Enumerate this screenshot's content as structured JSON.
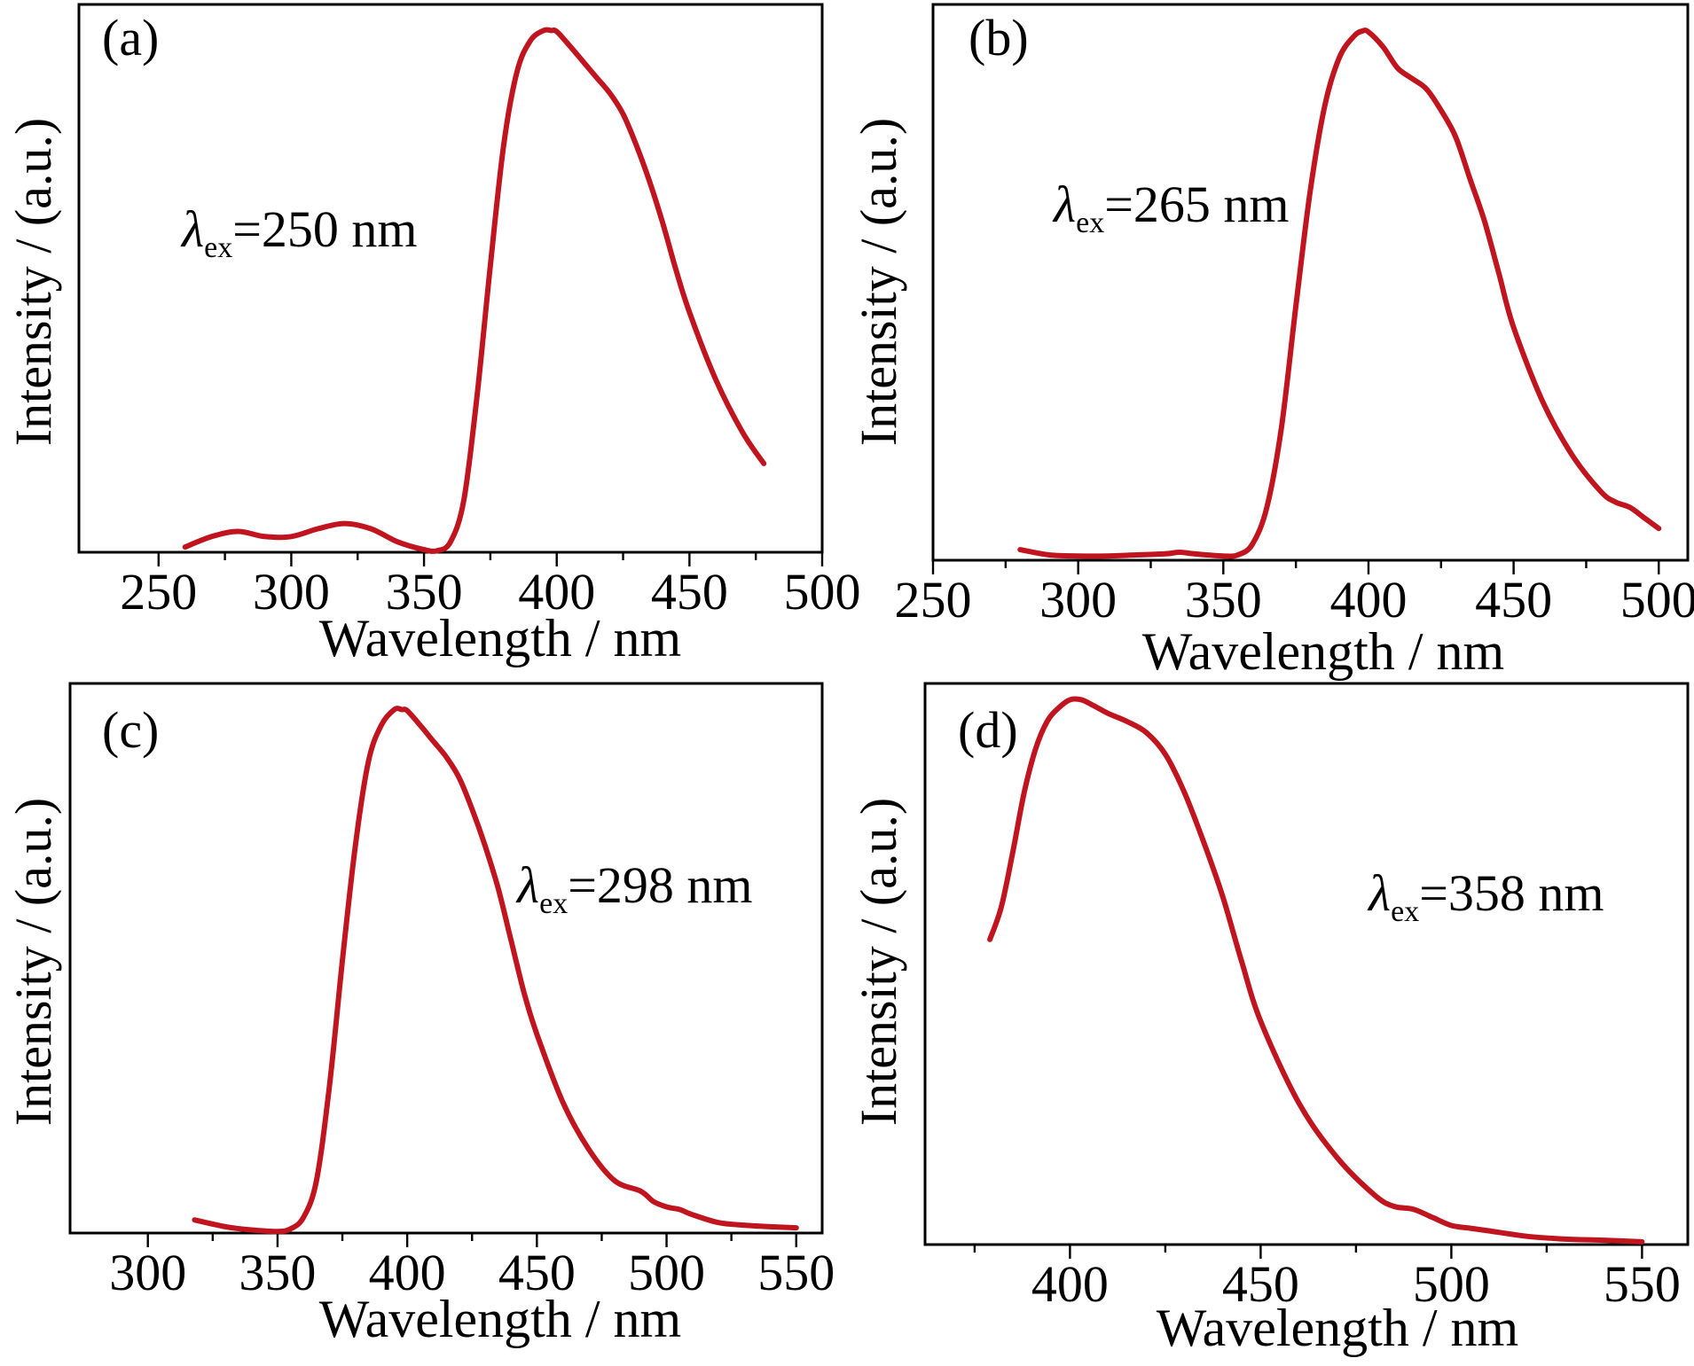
{
  "chart_data": [
    {
      "type": "line",
      "panel_label": "(a)",
      "annotation": {
        "symbol": "λ",
        "subscript": "ex",
        "text": "=250 nm"
      },
      "xlabel": "Wavelength / nm",
      "ylabel": "Intensity / (a.u.)",
      "xlim": [
        220,
        500
      ],
      "ylim": [
        0,
        1.05
      ],
      "x_major_ticks": [
        250,
        300,
        350,
        400,
        450,
        500
      ],
      "x_minor_ticks": [
        275,
        325,
        375,
        425,
        475
      ],
      "series": [
        {
          "color": "#c0151f",
          "x": [
            260,
            270,
            280,
            290,
            300,
            310,
            320,
            330,
            340,
            350,
            355,
            360,
            365,
            370,
            375,
            380,
            385,
            390,
            395,
            398,
            400,
            405,
            410,
            415,
            420,
            425,
            430,
            435,
            440,
            445,
            450,
            460,
            470,
            478
          ],
          "y": [
            0.01,
            0.03,
            0.04,
            0.03,
            0.03,
            0.045,
            0.055,
            0.045,
            0.02,
            0.005,
            0.003,
            0.02,
            0.1,
            0.3,
            0.55,
            0.78,
            0.92,
            0.98,
            1.0,
            1.0,
            0.998,
            0.97,
            0.94,
            0.91,
            0.88,
            0.84,
            0.78,
            0.71,
            0.63,
            0.54,
            0.46,
            0.33,
            0.23,
            0.17
          ]
        }
      ]
    },
    {
      "type": "line",
      "panel_label": "(b)",
      "annotation": {
        "symbol": "λ",
        "subscript": "ex",
        "text": "=265 nm"
      },
      "xlabel": "Wavelength / nm",
      "ylabel": "Intensity / (a.u.)",
      "xlim": [
        250,
        510
      ],
      "ylim": [
        0,
        1.05
      ],
      "x_major_ticks": [
        250,
        300,
        350,
        400,
        450,
        500
      ],
      "x_minor_ticks": [
        275,
        325,
        375,
        425,
        475
      ],
      "series": [
        {
          "color": "#c0151f",
          "x": [
            280,
            290,
            300,
            310,
            320,
            330,
            335,
            340,
            350,
            355,
            360,
            365,
            370,
            375,
            380,
            385,
            390,
            395,
            398,
            400,
            405,
            410,
            415,
            420,
            425,
            430,
            435,
            440,
            445,
            450,
            460,
            470,
            480,
            485,
            490,
            495,
            500
          ],
          "y": [
            0.02,
            0.01,
            0.008,
            0.008,
            0.01,
            0.012,
            0.015,
            0.012,
            0.008,
            0.01,
            0.03,
            0.1,
            0.25,
            0.48,
            0.7,
            0.86,
            0.95,
            0.99,
            1.0,
            0.998,
            0.97,
            0.93,
            0.91,
            0.89,
            0.85,
            0.8,
            0.72,
            0.64,
            0.54,
            0.44,
            0.3,
            0.2,
            0.13,
            0.11,
            0.1,
            0.08,
            0.06
          ]
        }
      ]
    },
    {
      "type": "line",
      "panel_label": "(c)",
      "annotation": {
        "symbol": "λ",
        "subscript": "ex",
        "text": "=298 nm"
      },
      "xlabel": "Wavelength / nm",
      "ylabel": "Intensity / (a.u.)",
      "xlim": [
        270,
        560
      ],
      "ylim": [
        0,
        1.05
      ],
      "x_major_ticks": [
        300,
        350,
        400,
        450,
        500,
        550
      ],
      "x_minor_ticks": [
        325,
        375,
        425,
        475,
        525
      ],
      "series": [
        {
          "color": "#c0151f",
          "x": [
            318,
            330,
            340,
            350,
            355,
            360,
            365,
            370,
            375,
            380,
            385,
            390,
            395,
            398,
            400,
            405,
            410,
            415,
            420,
            425,
            430,
            435,
            440,
            445,
            450,
            460,
            470,
            480,
            490,
            495,
            500,
            505,
            510,
            520,
            530,
            540,
            550
          ],
          "y": [
            0.025,
            0.012,
            0.006,
            0.003,
            0.008,
            0.03,
            0.1,
            0.28,
            0.52,
            0.74,
            0.9,
            0.97,
            1.0,
            1.0,
            0.998,
            0.97,
            0.94,
            0.91,
            0.87,
            0.81,
            0.74,
            0.66,
            0.56,
            0.46,
            0.38,
            0.25,
            0.16,
            0.1,
            0.08,
            0.06,
            0.05,
            0.045,
            0.035,
            0.02,
            0.015,
            0.012,
            0.01
          ]
        }
      ]
    },
    {
      "type": "line",
      "panel_label": "(d)",
      "annotation": {
        "symbol": "λ",
        "subscript": "ex",
        "text": "=358 nm"
      },
      "xlabel": "Wavelength / nm",
      "ylabel": "Intensity / (a.u.)",
      "xlim": [
        362,
        562
      ],
      "ylim": [
        0,
        1.03
      ],
      "x_major_ticks": [
        400,
        450,
        500,
        550
      ],
      "x_minor_ticks": [
        375,
        425,
        475,
        525
      ],
      "series": [
        {
          "color": "#c0151f",
          "x": [
            379,
            382,
            385,
            388,
            391,
            394,
            397,
            400,
            403,
            406,
            410,
            415,
            420,
            425,
            430,
            435,
            440,
            445,
            450,
            460,
            470,
            480,
            485,
            490,
            495,
            500,
            505,
            510,
            520,
            530,
            540,
            550
          ],
          "y": [
            0.56,
            0.62,
            0.72,
            0.83,
            0.91,
            0.96,
            0.985,
            1.0,
            1.0,
            0.99,
            0.975,
            0.96,
            0.94,
            0.9,
            0.83,
            0.74,
            0.64,
            0.52,
            0.41,
            0.26,
            0.16,
            0.09,
            0.07,
            0.065,
            0.05,
            0.035,
            0.03,
            0.025,
            0.015,
            0.01,
            0.008,
            0.005
          ]
        }
      ]
    }
  ]
}
